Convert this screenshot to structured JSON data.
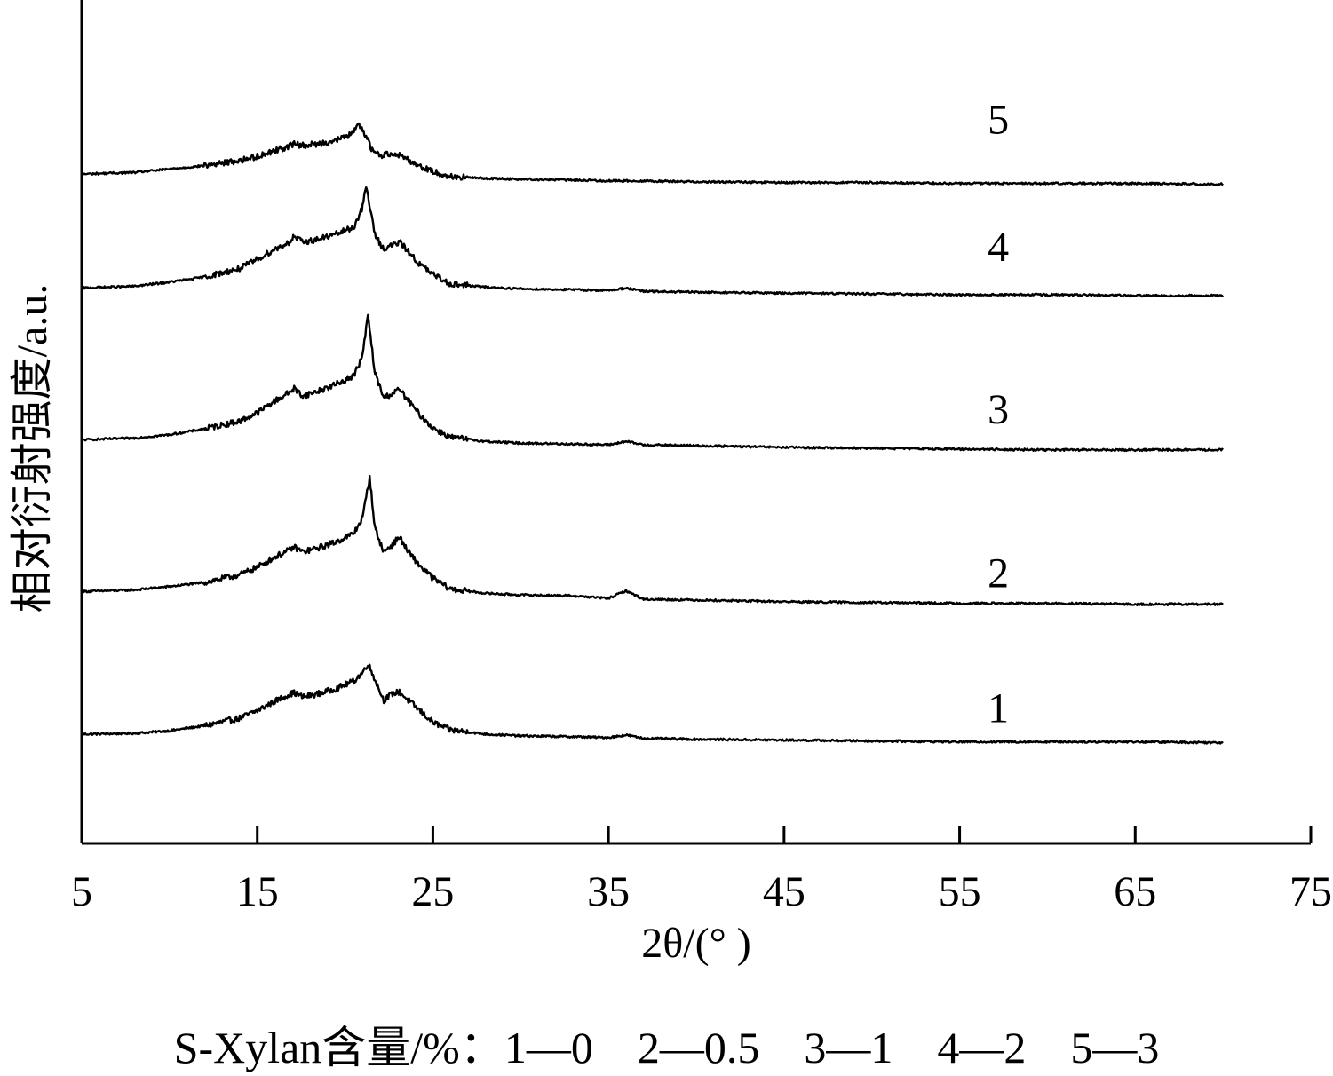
{
  "chart_data": {
    "type": "line",
    "xlabel": "2θ/(°  )",
    "ylabel": "相对衍射强度/a.u.",
    "xlim": [
      5,
      75
    ],
    "xticks": [
      5,
      15,
      25,
      35,
      45,
      55,
      65,
      75
    ],
    "yticks": [],
    "y_units": "a.u. (offset stacked)",
    "grid": false,
    "legend": "curve numbers at right end of each curve; key given in caption below x-axis",
    "series": [
      {
        "name": "1",
        "x": [
          5,
          8,
          10,
          12,
          14,
          15,
          16,
          16.8,
          17.1,
          17.6,
          18.5,
          19.5,
          20.5,
          21.0,
          21.3,
          21.7,
          22.2,
          22.7,
          23.1,
          23.5,
          24.2,
          25,
          26,
          28,
          30,
          33,
          35,
          36,
          37,
          40,
          45,
          50,
          55,
          60,
          65,
          70
        ],
        "y": [
          1.9,
          2.0,
          2.3,
          2.9,
          3.8,
          4.7,
          5.8,
          6.6,
          6.8,
          6.3,
          6.7,
          7.3,
          8.2,
          9.2,
          10.3,
          8.4,
          5.9,
          6.7,
          6.9,
          6.1,
          4.8,
          3.3,
          2.4,
          1.9,
          1.7,
          1.6,
          1.5,
          1.8,
          1.4,
          1.3,
          1.2,
          1.1,
          1.0,
          1.0,
          1.0,
          0.9
        ]
      },
      {
        "name": "2",
        "x": [
          5,
          8,
          10,
          12,
          14,
          15,
          16,
          16.8,
          17.1,
          17.6,
          18.5,
          19.5,
          20.5,
          21.0,
          21.4,
          21.7,
          22.2,
          22.7,
          23.1,
          23.5,
          24.2,
          25,
          26,
          28,
          30,
          33,
          35,
          36,
          37,
          40,
          45,
          50,
          55,
          60,
          65,
          70
        ],
        "y": [
          18.8,
          19.0,
          19.4,
          19.9,
          20.8,
          21.7,
          22.9,
          23.7,
          24.1,
          23.5,
          24.0,
          24.7,
          25.7,
          27.6,
          32.4,
          26.3,
          23.5,
          24.4,
          25.3,
          23.8,
          22.0,
          20.4,
          19.1,
          18.6,
          18.4,
          18.3,
          18.0,
          18.9,
          17.9,
          17.8,
          17.6,
          17.5,
          17.4,
          17.4,
          17.3,
          17.3
        ]
      },
      {
        "name": "3",
        "x": [
          5,
          8,
          10,
          12,
          14,
          15,
          16,
          16.8,
          17.1,
          17.6,
          18.5,
          19.5,
          20.5,
          21.0,
          21.3,
          21.7,
          22.2,
          22.7,
          23.1,
          23.5,
          24.2,
          25,
          26,
          28,
          30,
          33,
          35,
          36,
          37,
          40,
          45,
          50,
          55,
          60,
          65,
          70
        ],
        "y": [
          36.8,
          37.0,
          37.4,
          38.1,
          39.0,
          40.0,
          41.4,
          42.4,
          42.9,
          42.0,
          42.6,
          43.4,
          44.4,
          46.8,
          51.6,
          44.7,
          41.8,
          42.3,
          42.8,
          41.7,
          39.9,
          38.2,
          37.1,
          36.6,
          36.4,
          36.3,
          36.2,
          36.6,
          36.2,
          36.1,
          35.9,
          35.8,
          35.7,
          35.6,
          35.6,
          35.6
        ]
      },
      {
        "name": "4",
        "x": [
          5,
          8,
          10,
          12,
          14,
          15,
          16,
          16.8,
          17.1,
          17.6,
          18.5,
          19.5,
          20.5,
          21.0,
          21.2,
          21.7,
          22.2,
          22.7,
          23.1,
          23.5,
          24.2,
          25,
          26,
          28,
          30,
          33,
          35,
          36,
          37,
          40,
          45,
          50,
          55,
          60,
          65,
          70
        ],
        "y": [
          54.8,
          55.0,
          55.5,
          56.1,
          57.1,
          58.2,
          59.4,
          60.2,
          60.9,
          60.2,
          60.6,
          61.2,
          62.0,
          64.4,
          66.9,
          61.1,
          59.4,
          59.9,
          60.2,
          59.4,
          57.7,
          56.4,
          55.3,
          54.9,
          54.7,
          54.6,
          54.5,
          54.8,
          54.4,
          54.3,
          54.2,
          54.1,
          54.0,
          54.0,
          53.9,
          53.9
        ]
      },
      {
        "name": "5",
        "x": [
          5,
          8,
          10,
          12,
          14,
          15,
          16,
          16.8,
          17.1,
          17.6,
          18.5,
          19.5,
          20.5,
          20.7,
          21.0,
          21.5,
          22.0,
          22.7,
          23.3,
          24,
          25,
          26,
          28,
          30,
          33,
          35,
          36,
          37,
          40,
          45,
          50,
          55,
          60,
          65,
          70
        ],
        "y": [
          68.3,
          68.5,
          68.9,
          69.3,
          69.9,
          70.4,
          71.1,
          71.6,
          71.9,
          71.7,
          71.9,
          72.3,
          73.2,
          74.2,
          73.7,
          71.3,
          70.5,
          70.8,
          70.4,
          69.5,
          68.6,
          68.0,
          67.8,
          67.7,
          67.6,
          67.5,
          67.5,
          67.5,
          67.4,
          67.3,
          67.3,
          67.2,
          67.2,
          67.2,
          67.1
        ]
      }
    ],
    "curve_labels": [
      {
        "text": "1",
        "x": 57.2,
        "y": 5.0
      },
      {
        "text": "2",
        "x": 57.2,
        "y": 21.0
      },
      {
        "text": "3",
        "x": 57.2,
        "y": 40.4
      },
      {
        "text": "4",
        "x": 57.2,
        "y": 59.7
      },
      {
        "text": "5",
        "x": 57.2,
        "y": 74.8
      }
    ]
  },
  "caption": "S-Xylan含量/%：1—0    2—0.5    3—1    4—2    5—3"
}
